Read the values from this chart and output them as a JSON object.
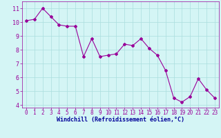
{
  "x": [
    0,
    1,
    2,
    3,
    4,
    5,
    6,
    7,
    8,
    9,
    10,
    11,
    12,
    13,
    14,
    15,
    16,
    17,
    18,
    19,
    20,
    21,
    22,
    23
  ],
  "y": [
    10.1,
    10.2,
    11.0,
    10.4,
    9.8,
    9.7,
    9.7,
    7.5,
    8.8,
    7.5,
    7.6,
    7.7,
    8.4,
    8.3,
    8.8,
    8.1,
    7.6,
    6.5,
    4.5,
    4.2,
    4.6,
    5.9,
    5.1,
    4.5
  ],
  "line_color": "#990099",
  "marker": "D",
  "marker_size": 2.0,
  "background_color": "#d4f5f5",
  "grid_color": "#aadddd",
  "xlabel": "Windchill (Refroidissement éolien,°C)",
  "xlabel_color": "#000099",
  "tick_color": "#990099",
  "ylim": [
    3.8,
    11.5
  ],
  "xlim": [
    -0.5,
    23.5
  ],
  "yticks": [
    4,
    5,
    6,
    7,
    8,
    9,
    10,
    11
  ],
  "xticks": [
    0,
    1,
    2,
    3,
    4,
    5,
    6,
    7,
    8,
    9,
    10,
    11,
    12,
    13,
    14,
    15,
    16,
    17,
    18,
    19,
    20,
    21,
    22,
    23
  ],
  "tick_fontsize": 5.5,
  "xlabel_fontsize": 6.0
}
